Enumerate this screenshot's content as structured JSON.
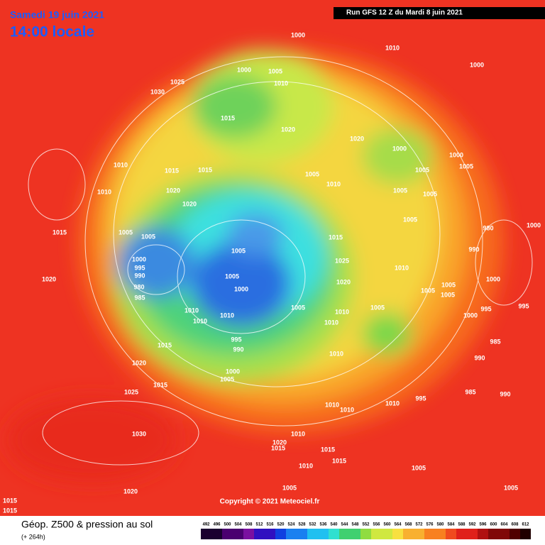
{
  "header": {
    "date": "Samedi 19 juin 2021",
    "time": "14:00 locale",
    "run": "Run GFS 12 Z du Mardi 8 juin 2021"
  },
  "copyright": "Copyright © 2021 Meteociel.fr",
  "isobar_labels": [
    1000,
    1010,
    1000,
    1000,
    1005,
    1010,
    1025,
    1030,
    1015,
    1020,
    1020,
    1000,
    1000,
    1005,
    1005,
    1010,
    1015,
    1015,
    1020,
    1005,
    1010,
    1005,
    1005,
    1010,
    1020,
    1005,
    1015,
    1005,
    1005,
    980,
    1000,
    1015,
    990,
    1000,
    995,
    990,
    1005,
    1005,
    1000,
    1025,
    1020,
    1010,
    980,
    985,
    1020,
    1000,
    1005,
    1005,
    1005,
    995,
    1010,
    1010,
    1010,
    1005,
    1005,
    1000,
    995,
    1010,
    1010,
    995,
    990,
    1015,
    985,
    1010,
    990,
    1020,
    1000,
    1005,
    1015,
    1025,
    995,
    985,
    990,
    1010,
    1010,
    1010,
    1030,
    1010,
    1020,
    1015,
    1015,
    1010,
    1015,
    1005,
    1020,
    1005,
    1005,
    1015,
    1015
  ],
  "legend": {
    "title": "Géop. Z500 & pression au sol",
    "lead": "(+ 264h)",
    "levels": [
      492,
      496,
      500,
      504,
      508,
      512,
      516,
      520,
      524,
      528,
      532,
      536,
      540,
      544,
      548,
      552,
      556,
      560,
      564,
      568,
      572,
      576,
      580,
      584,
      588,
      592,
      596,
      600,
      604,
      608,
      612
    ]
  }
}
